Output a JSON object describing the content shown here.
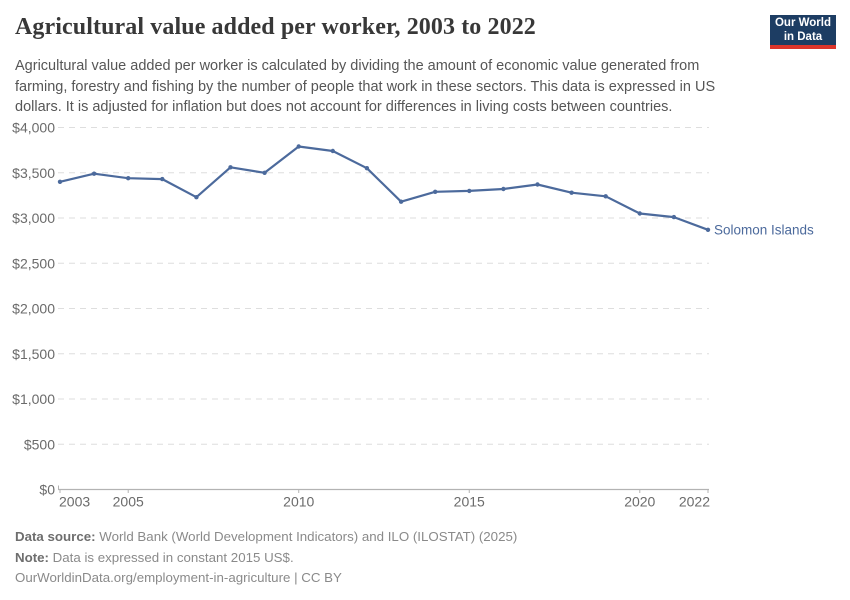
{
  "header": {
    "title": "Agricultural value added per worker, 2003 to 2022",
    "subtitle": "Agricultural value added per worker is calculated by dividing the amount of economic value generated from farming, forestry and fishing by the number of people that work in these sectors. This data is expressed in US dollars. It is adjusted for inflation but does not account for differences in living costs between countries."
  },
  "logo": {
    "line1": "Our World",
    "line2": "in Data",
    "bg_color": "#1d3d63",
    "bar_color": "#dc352b"
  },
  "chart_data": {
    "type": "line",
    "title": "Agricultural value added per worker, 2003 to 2022",
    "x": [
      2003,
      2004,
      2005,
      2006,
      2007,
      2008,
      2009,
      2010,
      2011,
      2012,
      2013,
      2014,
      2015,
      2016,
      2017,
      2018,
      2019,
      2020,
      2021,
      2022
    ],
    "series": [
      {
        "name": "Solomon Islands",
        "values": [
          3400,
          3490,
          3440,
          3430,
          3230,
          3560,
          3500,
          3790,
          3740,
          3550,
          3180,
          3290,
          3300,
          3320,
          3370,
          3280,
          3240,
          3050,
          3010,
          2870
        ],
        "color": "#4c6a9c"
      }
    ],
    "end_label": "Solomon Islands",
    "xlim": [
      2003,
      2022
    ],
    "ylim": [
      0,
      4000
    ],
    "x_ticks": [
      2003,
      2005,
      2010,
      2015,
      2020,
      2022
    ],
    "x_tick_labels": [
      "2003",
      "2005",
      "2010",
      "2015",
      "2020",
      "2022"
    ],
    "y_ticks": [
      0,
      500,
      1000,
      1500,
      2000,
      2500,
      3000,
      3500,
      4000
    ],
    "y_tick_labels": [
      "$0",
      "$500",
      "$1,000",
      "$1,500",
      "$2,000",
      "$2,500",
      "$3,000",
      "$3,500",
      "$4,000"
    ],
    "grid": "horizontal-dashed",
    "legend_position": "end-of-line-label",
    "axis_color": "#b3b3b3",
    "grid_color": "#dedede",
    "tick_label_color": "#6b6b6b"
  },
  "footer": {
    "source_label": "Data source:",
    "source_text": " World Bank (World Development Indicators) and ILO (ILOSTAT) (2025)",
    "note_label": "Note:",
    "note_text": " Data is expressed in constant 2015 US$.",
    "url": "OurWorldinData.org/employment-in-agriculture",
    "separator": " | ",
    "license": "CC BY"
  }
}
